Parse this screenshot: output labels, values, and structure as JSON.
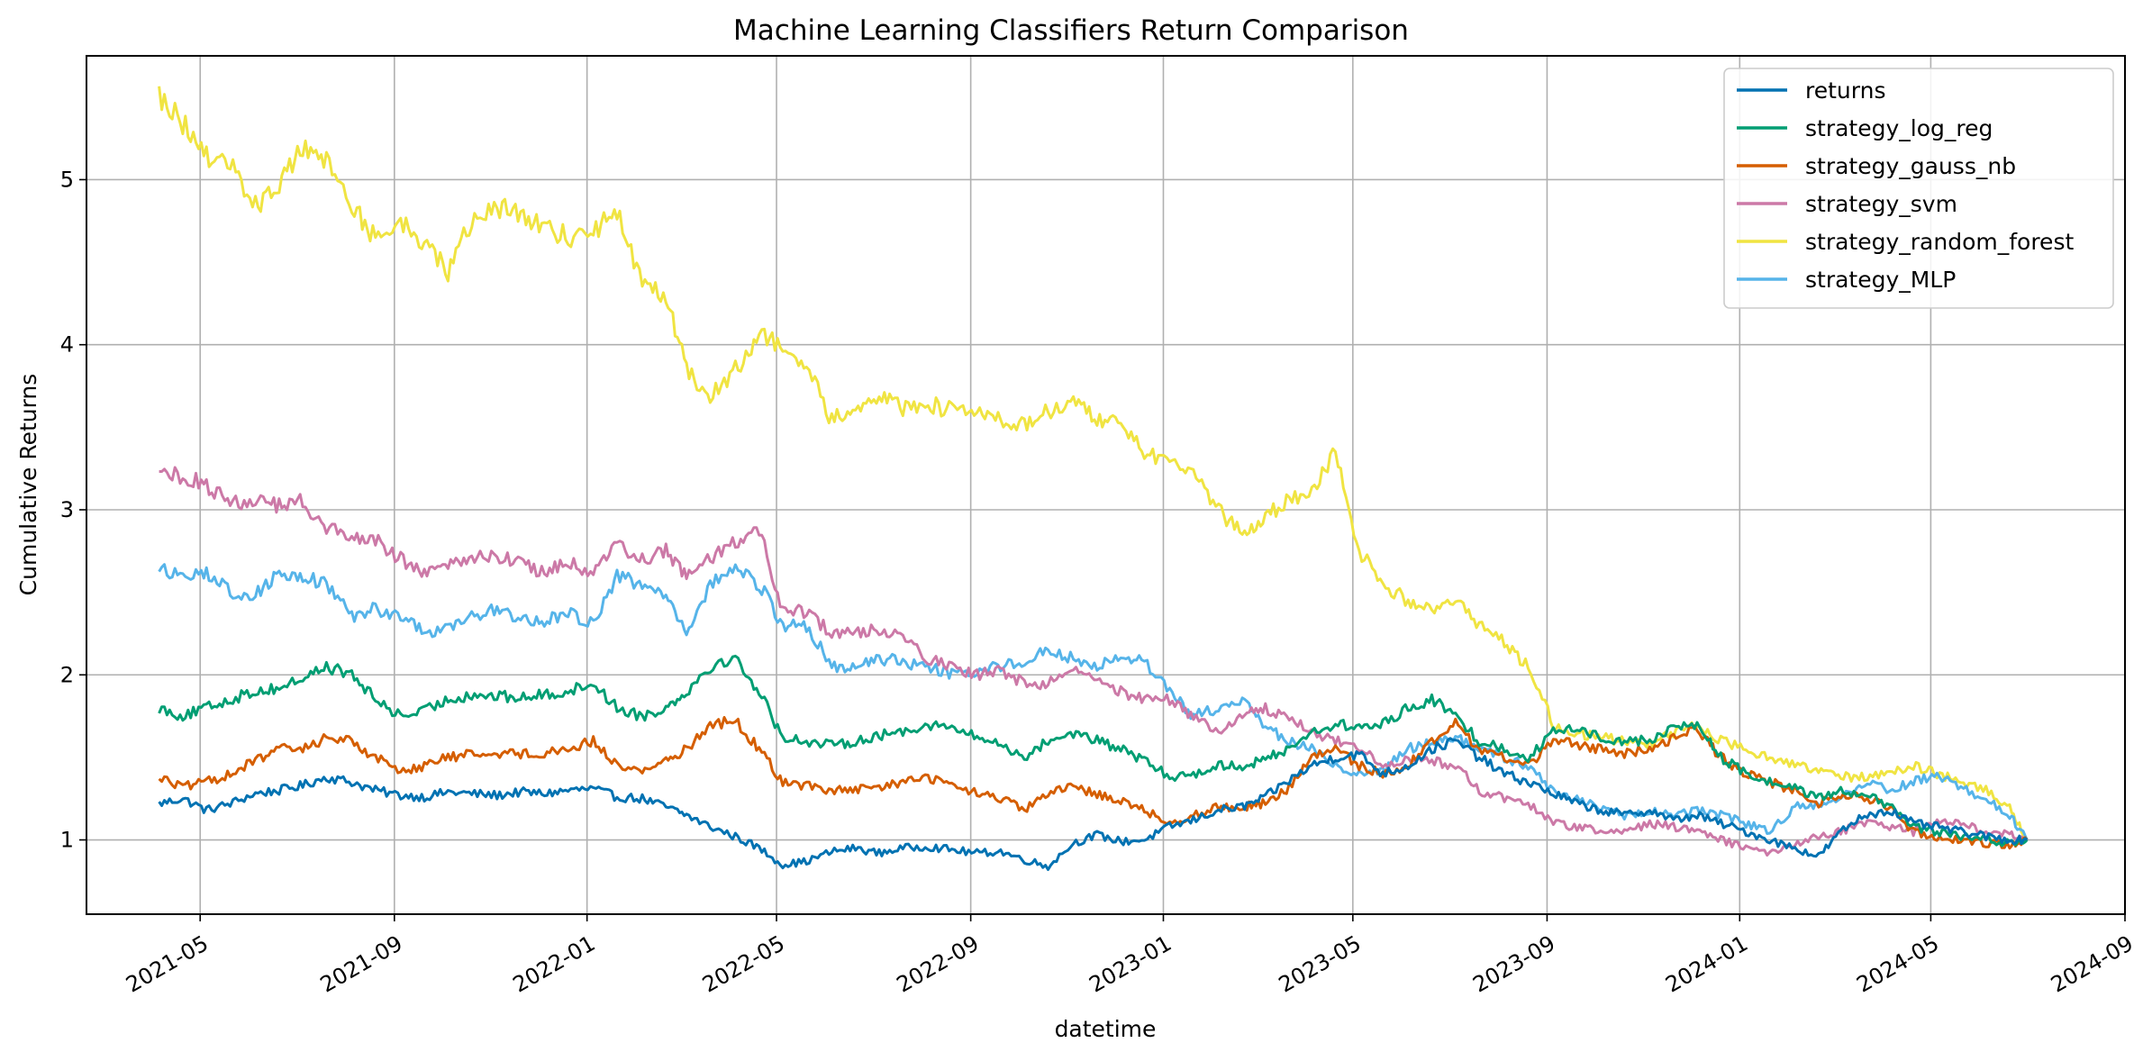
{
  "chart_data": {
    "type": "line",
    "title": "Machine Learning Classifiers Return Comparison",
    "xlabel": "datetime",
    "ylabel": "Cumulative Returns",
    "x_ticks": [
      "2021-05",
      "2021-09",
      "2022-01",
      "2022-05",
      "2022-09",
      "2023-01",
      "2023-05",
      "2023-09",
      "2024-01",
      "2024-05",
      "2024-09"
    ],
    "y_ticks": [
      "1",
      "2",
      "3",
      "4",
      "5"
    ],
    "xlim": [
      "2021-02-18",
      "2024-09-01"
    ],
    "ylim": [
      0.55,
      5.75
    ],
    "grid": true,
    "legend_position": "top-right",
    "x": [
      "2021-04-05",
      "2021-04-20",
      "2021-05-05",
      "2021-05-20",
      "2021-06-05",
      "2021-06-20",
      "2021-07-05",
      "2021-07-20",
      "2021-08-05",
      "2021-08-20",
      "2021-09-05",
      "2021-09-20",
      "2021-10-05",
      "2021-10-20",
      "2021-11-05",
      "2021-11-20",
      "2021-12-05",
      "2021-12-20",
      "2022-01-05",
      "2022-01-20",
      "2022-02-05",
      "2022-02-20",
      "2022-03-05",
      "2022-03-20",
      "2022-04-05",
      "2022-04-20",
      "2022-05-05",
      "2022-05-20",
      "2022-06-05",
      "2022-06-20",
      "2022-07-05",
      "2022-07-20",
      "2022-08-05",
      "2022-08-20",
      "2022-09-05",
      "2022-09-20",
      "2022-10-05",
      "2022-10-20",
      "2022-11-05",
      "2022-11-20",
      "2022-12-05",
      "2022-12-20",
      "2023-01-05",
      "2023-01-20",
      "2023-02-05",
      "2023-02-20",
      "2023-03-05",
      "2023-03-20",
      "2023-04-05",
      "2023-04-20",
      "2023-05-05",
      "2023-05-20",
      "2023-06-05",
      "2023-06-20",
      "2023-07-05",
      "2023-07-20",
      "2023-08-05",
      "2023-08-20",
      "2023-09-05",
      "2023-09-20",
      "2023-10-05",
      "2023-10-20",
      "2023-11-05",
      "2023-11-20",
      "2023-12-05",
      "2023-12-20",
      "2024-01-05",
      "2024-01-20",
      "2024-02-05",
      "2024-02-20",
      "2024-03-05",
      "2024-03-20",
      "2024-04-05",
      "2024-04-20",
      "2024-05-05",
      "2024-05-20",
      "2024-06-05",
      "2024-06-20",
      "2024-07-01"
    ],
    "series": [
      {
        "name": "returns",
        "color": "#0072B2",
        "values": [
          1.22,
          1.25,
          1.18,
          1.22,
          1.28,
          1.3,
          1.33,
          1.38,
          1.35,
          1.3,
          1.27,
          1.26,
          1.29,
          1.28,
          1.27,
          1.29,
          1.28,
          1.3,
          1.31,
          1.26,
          1.25,
          1.2,
          1.15,
          1.08,
          1.02,
          0.95,
          0.85,
          0.87,
          0.93,
          0.95,
          0.92,
          0.95,
          0.96,
          0.94,
          0.92,
          0.93,
          0.88,
          0.84,
          0.98,
          1.03,
          0.99,
          1.0,
          1.08,
          1.12,
          1.18,
          1.2,
          1.25,
          1.35,
          1.45,
          1.5,
          1.52,
          1.4,
          1.45,
          1.55,
          1.6,
          1.5,
          1.4,
          1.35,
          1.28,
          1.22,
          1.18,
          1.15,
          1.18,
          1.12,
          1.15,
          1.1,
          1.05,
          1.0,
          0.95,
          0.9,
          1.05,
          1.15,
          1.18,
          1.1,
          1.08,
          1.05,
          1.02,
          1.0,
          1.0
        ]
      },
      {
        "name": "strategy_log_reg",
        "color": "#009E73",
        "values": [
          1.8,
          1.75,
          1.8,
          1.85,
          1.9,
          1.92,
          1.98,
          2.05,
          2.0,
          1.85,
          1.75,
          1.78,
          1.85,
          1.88,
          1.87,
          1.86,
          1.88,
          1.9,
          1.95,
          1.8,
          1.75,
          1.8,
          1.9,
          2.05,
          2.1,
          1.9,
          1.62,
          1.6,
          1.57,
          1.6,
          1.63,
          1.66,
          1.7,
          1.68,
          1.62,
          1.58,
          1.5,
          1.6,
          1.65,
          1.6,
          1.55,
          1.48,
          1.38,
          1.4,
          1.45,
          1.45,
          1.48,
          1.55,
          1.65,
          1.7,
          1.68,
          1.7,
          1.8,
          1.85,
          1.75,
          1.6,
          1.55,
          1.5,
          1.65,
          1.68,
          1.62,
          1.6,
          1.6,
          1.68,
          1.7,
          1.5,
          1.4,
          1.35,
          1.32,
          1.25,
          1.3,
          1.28,
          1.2,
          1.08,
          1.05,
          1.02,
          1.0,
          0.98,
          1.0
        ]
      },
      {
        "name": "strategy_gauss_nb",
        "color": "#D55E00",
        "values": [
          1.38,
          1.32,
          1.35,
          1.4,
          1.48,
          1.55,
          1.55,
          1.62,
          1.6,
          1.5,
          1.42,
          1.45,
          1.5,
          1.52,
          1.53,
          1.52,
          1.53,
          1.55,
          1.6,
          1.45,
          1.42,
          1.48,
          1.55,
          1.7,
          1.72,
          1.55,
          1.35,
          1.33,
          1.3,
          1.3,
          1.32,
          1.35,
          1.38,
          1.33,
          1.28,
          1.25,
          1.18,
          1.28,
          1.32,
          1.28,
          1.24,
          1.18,
          1.1,
          1.15,
          1.2,
          1.2,
          1.22,
          1.3,
          1.5,
          1.55,
          1.45,
          1.4,
          1.45,
          1.6,
          1.7,
          1.55,
          1.5,
          1.45,
          1.6,
          1.58,
          1.55,
          1.52,
          1.55,
          1.62,
          1.68,
          1.5,
          1.4,
          1.35,
          1.3,
          1.22,
          1.28,
          1.25,
          1.2,
          1.05,
          1.02,
          1.0,
          0.98,
          0.97,
          1.0
        ]
      },
      {
        "name": "strategy_svm",
        "color": "#CC79A7",
        "values": [
          3.22,
          3.2,
          3.15,
          3.05,
          3.05,
          3.02,
          3.05,
          2.88,
          2.85,
          2.82,
          2.7,
          2.62,
          2.65,
          2.72,
          2.72,
          2.68,
          2.62,
          2.68,
          2.6,
          2.8,
          2.7,
          2.75,
          2.6,
          2.7,
          2.8,
          2.88,
          2.4,
          2.38,
          2.25,
          2.25,
          2.28,
          2.25,
          2.1,
          2.05,
          2.0,
          2.02,
          1.95,
          1.95,
          2.05,
          2.0,
          1.9,
          1.85,
          1.85,
          1.75,
          1.65,
          1.75,
          1.8,
          1.75,
          1.65,
          1.6,
          1.55,
          1.45,
          1.5,
          1.48,
          1.45,
          1.3,
          1.25,
          1.22,
          1.1,
          1.08,
          1.05,
          1.05,
          1.1,
          1.08,
          1.05,
          1.0,
          0.95,
          0.92,
          0.98,
          1.02,
          1.05,
          1.1,
          1.08,
          1.05,
          1.12,
          1.1,
          1.05,
          1.04,
          1.0
        ]
      },
      {
        "name": "strategy_random_forest",
        "color": "#F0E442",
        "values": [
          5.5,
          5.35,
          5.15,
          5.1,
          4.85,
          4.95,
          5.2,
          5.1,
          4.85,
          4.65,
          4.75,
          4.6,
          4.45,
          4.75,
          4.82,
          4.8,
          4.7,
          4.65,
          4.7,
          4.8,
          4.35,
          4.3,
          3.85,
          3.7,
          3.85,
          4.05,
          4.0,
          3.85,
          3.55,
          3.6,
          3.7,
          3.62,
          3.65,
          3.6,
          3.58,
          3.55,
          3.5,
          3.6,
          3.65,
          3.55,
          3.5,
          3.35,
          3.3,
          3.2,
          3.0,
          2.85,
          2.95,
          3.05,
          3.1,
          3.35,
          2.75,
          2.55,
          2.45,
          2.4,
          2.45,
          2.3,
          2.2,
          2.05,
          1.7,
          1.65,
          1.62,
          1.6,
          1.58,
          1.65,
          1.7,
          1.6,
          1.55,
          1.5,
          1.45,
          1.42,
          1.38,
          1.38,
          1.4,
          1.45,
          1.4,
          1.35,
          1.3,
          1.2,
          1.0
        ]
      },
      {
        "name": "strategy_MLP",
        "color": "#56B4E9",
        "values": [
          2.65,
          2.6,
          2.62,
          2.5,
          2.48,
          2.62,
          2.6,
          2.55,
          2.35,
          2.4,
          2.35,
          2.25,
          2.3,
          2.35,
          2.4,
          2.35,
          2.32,
          2.38,
          2.3,
          2.6,
          2.55,
          2.5,
          2.25,
          2.55,
          2.65,
          2.55,
          2.3,
          2.3,
          2.05,
          2.05,
          2.1,
          2.08,
          2.05,
          2.0,
          2.02,
          2.05,
          2.08,
          2.15,
          2.1,
          2.05,
          2.1,
          2.08,
          1.9,
          1.75,
          1.8,
          1.85,
          1.7,
          1.6,
          1.55,
          1.45,
          1.4,
          1.42,
          1.55,
          1.6,
          1.62,
          1.55,
          1.5,
          1.45,
          1.3,
          1.25,
          1.2,
          1.15,
          1.18,
          1.15,
          1.18,
          1.15,
          1.1,
          1.05,
          1.2,
          1.22,
          1.25,
          1.35,
          1.3,
          1.35,
          1.4,
          1.32,
          1.25,
          1.15,
          1.0
        ]
      }
    ]
  }
}
